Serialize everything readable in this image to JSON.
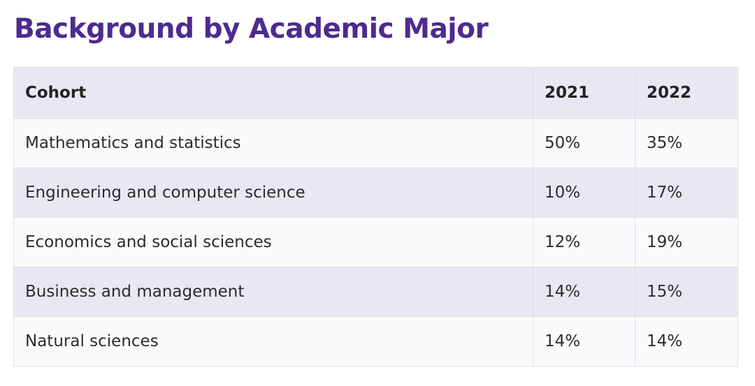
{
  "title": "Background by Academic Major",
  "table": {
    "headers": [
      "Cohort",
      "2021",
      "2022"
    ],
    "rows": [
      [
        "Mathematics and statistics",
        "50%",
        "35%"
      ],
      [
        "Engineering and computer science",
        "10%",
        "17%"
      ],
      [
        "Economics and social sciences",
        "12%",
        "19%"
      ],
      [
        "Business and management",
        "14%",
        "15%"
      ],
      [
        "Natural sciences",
        "14%",
        "14%"
      ]
    ]
  },
  "colors": {
    "title": "#4e2a8e",
    "row_shaded": "#ebe7f2",
    "row_light": "#fbf9fc",
    "border": "#e0dde8"
  }
}
